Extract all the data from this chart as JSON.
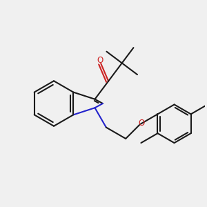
{
  "bg_color": "#f0f0f0",
  "bond_color": "#1a1a1a",
  "nitrogen_color": "#2222cc",
  "oxygen_color": "#cc2222",
  "lw": 1.5,
  "fig_size": [
    3.0,
    3.0
  ],
  "dpi": 100
}
